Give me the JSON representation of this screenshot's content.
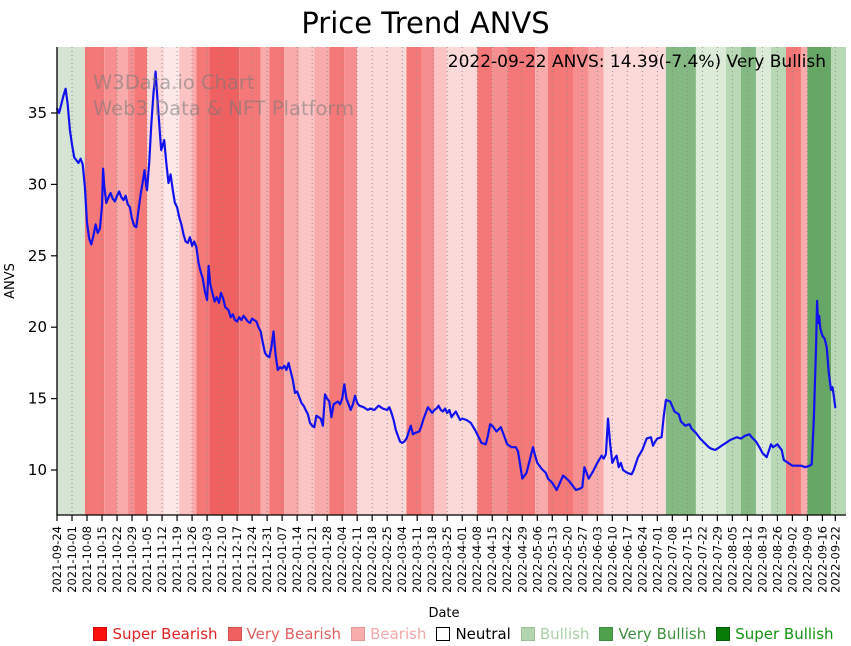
{
  "title": "Price Trend ANVS",
  "annotation": "2022-09-22 ANVS: 14.39(-7.4%) Very Bullish",
  "watermark": {
    "line1": "W3Data.io Chart",
    "line2": "Web3 Data & NFT Platform"
  },
  "axes": {
    "y_label": "ANVS",
    "x_label": "Date",
    "y_ticks": [
      10,
      15,
      20,
      25,
      30,
      35
    ]
  },
  "legend": [
    {
      "label": "Super Bearish",
      "swatch": "#fb0e0e",
      "border": "#cc0b0b",
      "text_color": "#de2323"
    },
    {
      "label": "Very Bearish",
      "swatch": "#f16060",
      "border": "#d45252",
      "text_color": "#e26060"
    },
    {
      "label": "Bearish",
      "swatch": "#f8acac",
      "border": "#dd9898",
      "text_color": "#f2a9a9"
    },
    {
      "label": "Neutral",
      "swatch": "#ffffff",
      "border": "#000000",
      "text_color": "#000000"
    },
    {
      "label": "Bullish",
      "swatch": "#b2d5af",
      "border": "#9dc099",
      "text_color": "#abd0a8"
    },
    {
      "label": "Very Bullish",
      "swatch": "#4fa24c",
      "border": "#418c3f",
      "text_color": "#3f923f"
    },
    {
      "label": "Super Bullish",
      "swatch": "#077d07",
      "border": "#055e05",
      "text_color": "#129312"
    }
  ],
  "colors": {
    "line": "#1212ee",
    "grid": "#8a8a8a",
    "spine": "#000000",
    "tones": {
      "g1": "#d6e5d3",
      "g1x": "#dcebd8",
      "g2": "#b9d8b6",
      "g3": "#84b983",
      "g4": "#66a765",
      "r1": "#ef6161",
      "r2": "#f47878",
      "r3": "#f69090",
      "p": "#f9abab",
      "pl": "#fbc3c3",
      "pv": "#fcd9d9",
      "px": "#fde8e8"
    }
  },
  "chart_data": {
    "type": "line",
    "title": "Price Trend ANVS",
    "xlabel": "Date",
    "ylabel": "ANVS",
    "x_unit": "days since 2021-09-24",
    "x_range": [
      0,
      368
    ],
    "ylim": [
      6.85,
      39.62
    ],
    "grid": "weekly dotted vertical",
    "legend_position": "bottom",
    "x_ticks": {
      "days": [
        0,
        7,
        14,
        21,
        28,
        35,
        42,
        49,
        56,
        63,
        70,
        77,
        84,
        91,
        98,
        105,
        112,
        119,
        126,
        133,
        140,
        147,
        154,
        161,
        168,
        175,
        182,
        189,
        196,
        203,
        210,
        217,
        224,
        231,
        238,
        245,
        252,
        259,
        266,
        273,
        280,
        287,
        294,
        301,
        308,
        315,
        322,
        329,
        336,
        343,
        350,
        357,
        363
      ],
      "labels": [
        "2021-09-24",
        "2021-10-01",
        "2021-10-08",
        "2021-10-15",
        "2021-10-22",
        "2021-10-29",
        "2021-11-05",
        "2021-11-12",
        "2021-11-19",
        "2021-11-26",
        "2021-12-03",
        "2021-12-10",
        "2021-12-17",
        "2021-12-24",
        "2021-12-31",
        "2022-01-07",
        "2022-01-14",
        "2022-01-21",
        "2022-01-28",
        "2022-02-04",
        "2022-02-11",
        "2022-02-18",
        "2022-02-25",
        "2022-03-04",
        "2022-03-11",
        "2022-03-18",
        "2022-03-25",
        "2022-04-01",
        "2022-04-08",
        "2022-04-15",
        "2022-04-22",
        "2022-04-29",
        "2022-05-06",
        "2022-05-13",
        "2022-05-20",
        "2022-05-27",
        "2022-06-03",
        "2022-06-10",
        "2022-06-17",
        "2022-06-24",
        "2022-07-01",
        "2022-07-08",
        "2022-07-15",
        "2022-07-22",
        "2022-07-29",
        "2022-08-05",
        "2022-08-12",
        "2022-08-19",
        "2022-08-26",
        "2022-09-02",
        "2022-09-09",
        "2022-09-16",
        "2022-09-22"
      ]
    },
    "bands": [
      [
        0,
        13,
        "g1"
      ],
      [
        13,
        22,
        "r2"
      ],
      [
        22,
        28,
        "r3"
      ],
      [
        28,
        33,
        "p"
      ],
      [
        33,
        36,
        "r3"
      ],
      [
        36,
        42,
        "r2"
      ],
      [
        42,
        50,
        "pv"
      ],
      [
        50,
        57,
        "px"
      ],
      [
        57,
        63,
        "pl"
      ],
      [
        63,
        65,
        "p"
      ],
      [
        65,
        71,
        "r2"
      ],
      [
        71,
        85,
        "r1"
      ],
      [
        85,
        95,
        "r2"
      ],
      [
        95,
        99,
        "p"
      ],
      [
        99,
        106,
        "r2"
      ],
      [
        106,
        113,
        "p"
      ],
      [
        113,
        120,
        "pl"
      ],
      [
        120,
        127,
        "p"
      ],
      [
        127,
        134,
        "r2"
      ],
      [
        134,
        140,
        "r3"
      ],
      [
        140,
        163,
        "pv"
      ],
      [
        163,
        170,
        "r2"
      ],
      [
        170,
        176,
        "r3"
      ],
      [
        176,
        182,
        "pl"
      ],
      [
        182,
        196,
        "pv"
      ],
      [
        196,
        203,
        "r2"
      ],
      [
        203,
        210,
        "r3"
      ],
      [
        210,
        223,
        "r2"
      ],
      [
        223,
        229,
        "p"
      ],
      [
        229,
        241,
        "r2"
      ],
      [
        241,
        248,
        "r3"
      ],
      [
        248,
        255,
        "p"
      ],
      [
        255,
        284,
        "pv"
      ],
      [
        284,
        298,
        "g3"
      ],
      [
        298,
        312,
        "g1x"
      ],
      [
        312,
        319,
        "g2"
      ],
      [
        319,
        326,
        "g3"
      ],
      [
        326,
        333,
        "g1x"
      ],
      [
        333,
        340,
        "g2"
      ],
      [
        340,
        347,
        "r2"
      ],
      [
        347,
        350,
        "p"
      ],
      [
        350,
        361,
        "g4"
      ],
      [
        361,
        368,
        "g2"
      ]
    ],
    "points": [
      [
        0,
        35.3
      ],
      [
        1,
        35.0
      ],
      [
        2,
        35.6
      ],
      [
        3,
        36.2
      ],
      [
        4,
        36.7
      ],
      [
        5,
        35.6
      ],
      [
        6,
        33.8
      ],
      [
        7,
        32.8
      ],
      [
        8,
        31.9
      ],
      [
        9,
        31.7
      ],
      [
        10,
        31.5
      ],
      [
        11,
        31.8
      ],
      [
        12,
        31.4
      ],
      [
        13,
        29.8
      ],
      [
        14,
        27.3
      ],
      [
        15,
        26.2
      ],
      [
        16,
        25.8
      ],
      [
        17,
        26.4
      ],
      [
        18,
        27.2
      ],
      [
        19,
        26.6
      ],
      [
        20,
        26.9
      ],
      [
        21,
        28.5
      ],
      [
        21.5,
        31.1
      ],
      [
        22,
        29.9
      ],
      [
        23,
        28.7
      ],
      [
        24,
        29.1
      ],
      [
        25,
        29.4
      ],
      [
        26,
        29.0
      ],
      [
        27,
        28.8
      ],
      [
        28,
        29.2
      ],
      [
        29,
        29.5
      ],
      [
        30,
        29.1
      ],
      [
        31,
        28.9
      ],
      [
        32,
        29.2
      ],
      [
        33,
        28.6
      ],
      [
        34,
        28.4
      ],
      [
        35,
        27.6
      ],
      [
        36,
        27.1
      ],
      [
        37,
        27.0
      ],
      [
        38,
        28.2
      ],
      [
        39,
        29.3
      ],
      [
        40,
        30.2
      ],
      [
        40.8,
        31.0
      ],
      [
        41.6,
        29.9
      ],
      [
        42,
        29.6
      ],
      [
        43,
        31.5
      ],
      [
        44,
        34.2
      ],
      [
        45,
        36.4
      ],
      [
        46,
        37.9
      ],
      [
        47,
        35.6
      ],
      [
        48,
        33.6
      ],
      [
        48.6,
        32.4
      ],
      [
        49,
        32.6
      ],
      [
        50,
        33.1
      ],
      [
        51,
        31.5
      ],
      [
        52,
        30.1
      ],
      [
        53,
        30.7
      ],
      [
        54,
        29.6
      ],
      [
        55,
        28.7
      ],
      [
        56,
        28.4
      ],
      [
        57,
        27.7
      ],
      [
        58,
        27.2
      ],
      [
        59,
        26.5
      ],
      [
        60,
        26.0
      ],
      [
        61,
        25.9
      ],
      [
        62,
        26.3
      ],
      [
        63,
        25.7
      ],
      [
        64,
        26.0
      ],
      [
        65,
        25.6
      ],
      [
        66,
        24.5
      ],
      [
        67,
        23.9
      ],
      [
        68,
        23.4
      ],
      [
        69,
        22.5
      ],
      [
        70,
        21.9
      ],
      [
        70.7,
        24.3
      ],
      [
        71.5,
        23.0
      ],
      [
        72.5,
        22.4
      ],
      [
        73.5,
        21.8
      ],
      [
        74.5,
        22.1
      ],
      [
        75.5,
        21.7
      ],
      [
        76.5,
        22.4
      ],
      [
        77.5,
        22.0
      ],
      [
        78.5,
        21.4
      ],
      [
        80,
        21.2
      ],
      [
        81,
        20.7
      ],
      [
        82,
        20.9
      ],
      [
        83,
        20.5
      ],
      [
        84,
        20.4
      ],
      [
        85,
        20.7
      ],
      [
        86,
        20.5
      ],
      [
        87,
        20.8
      ],
      [
        88,
        20.6
      ],
      [
        89,
        20.4
      ],
      [
        90,
        20.3
      ],
      [
        91,
        20.6
      ],
      [
        92,
        20.5
      ],
      [
        93,
        20.4
      ],
      [
        94,
        20.0
      ],
      [
        95,
        19.7
      ],
      [
        96,
        18.9
      ],
      [
        97,
        18.2
      ],
      [
        98,
        18.0
      ],
      [
        99,
        17.9
      ],
      [
        100,
        18.6
      ],
      [
        101,
        19.7
      ],
      [
        102,
        18.0
      ],
      [
        103,
        17.0
      ],
      [
        104,
        17.2
      ],
      [
        105,
        17.1
      ],
      [
        106,
        17.3
      ],
      [
        107,
        17.0
      ],
      [
        108,
        17.5
      ],
      [
        109,
        16.9
      ],
      [
        110,
        16.3
      ],
      [
        111,
        15.4
      ],
      [
        112,
        15.5
      ],
      [
        113,
        15.1
      ],
      [
        114,
        14.7
      ],
      [
        115,
        14.5
      ],
      [
        116,
        14.2
      ],
      [
        117,
        13.9
      ],
      [
        118,
        13.3
      ],
      [
        119,
        13.1
      ],
      [
        120,
        13.0
      ],
      [
        121,
        13.8
      ],
      [
        122,
        13.7
      ],
      [
        123,
        13.6
      ],
      [
        124,
        13.1
      ],
      [
        125,
        15.3
      ],
      [
        126,
        15.0
      ],
      [
        127,
        14.8
      ],
      [
        128,
        13.7
      ],
      [
        129,
        14.6
      ],
      [
        130,
        14.7
      ],
      [
        131,
        14.8
      ],
      [
        132,
        14.6
      ],
      [
        133,
        15.0
      ],
      [
        134,
        16.0
      ],
      [
        135,
        15.0
      ],
      [
        136,
        14.6
      ],
      [
        137,
        14.2
      ],
      [
        138,
        14.6
      ],
      [
        139,
        15.2
      ],
      [
        140,
        14.7
      ],
      [
        141,
        14.5
      ],
      [
        143,
        14.4
      ],
      [
        145,
        14.2
      ],
      [
        146,
        14.3
      ],
      [
        148,
        14.2
      ],
      [
        150,
        14.5
      ],
      [
        152,
        14.3
      ],
      [
        154,
        14.2
      ],
      [
        155,
        14.4
      ],
      [
        156,
        14.0
      ],
      [
        157,
        13.5
      ],
      [
        158,
        12.8
      ],
      [
        159,
        12.4
      ],
      [
        160,
        12.0
      ],
      [
        161,
        11.9
      ],
      [
        162,
        12.0
      ],
      [
        163,
        12.2
      ],
      [
        165,
        13.1
      ],
      [
        166,
        12.5
      ],
      [
        167,
        12.6
      ],
      [
        169,
        12.7
      ],
      [
        170,
        13.1
      ],
      [
        171,
        13.6
      ],
      [
        172,
        14.0
      ],
      [
        173,
        14.4
      ],
      [
        174,
        14.2
      ],
      [
        175,
        14.0
      ],
      [
        176,
        14.2
      ],
      [
        177,
        14.3
      ],
      [
        178,
        14.5
      ],
      [
        179,
        14.2
      ],
      [
        180,
        14.1
      ],
      [
        181,
        14.3
      ],
      [
        182,
        14.0
      ],
      [
        183,
        14.2
      ],
      [
        184,
        13.7
      ],
      [
        185,
        13.9
      ],
      [
        186,
        14.1
      ],
      [
        187,
        13.8
      ],
      [
        188,
        13.5
      ],
      [
        189,
        13.6
      ],
      [
        191,
        13.5
      ],
      [
        193,
        13.3
      ],
      [
        195,
        12.8
      ],
      [
        196,
        12.5
      ],
      [
        197,
        12.2
      ],
      [
        198,
        11.9
      ],
      [
        200,
        11.8
      ],
      [
        201,
        12.4
      ],
      [
        202,
        13.2
      ],
      [
        203,
        13.1
      ],
      [
        204,
        12.9
      ],
      [
        205,
        12.7
      ],
      [
        207,
        13.0
      ],
      [
        208,
        12.6
      ],
      [
        209,
        12.2
      ],
      [
        210,
        11.8
      ],
      [
        212,
        11.6
      ],
      [
        214,
        11.6
      ],
      [
        215,
        11.3
      ],
      [
        216,
        10.4
      ],
      [
        217,
        9.4
      ],
      [
        218,
        9.6
      ],
      [
        219,
        9.8
      ],
      [
        220,
        10.4
      ],
      [
        221,
        11.0
      ],
      [
        222,
        11.6
      ],
      [
        223,
        11.0
      ],
      [
        224,
        10.5
      ],
      [
        226,
        10.1
      ],
      [
        228,
        9.8
      ],
      [
        229,
        9.4
      ],
      [
        231,
        9.1
      ],
      [
        233,
        8.6
      ],
      [
        234,
        8.9
      ],
      [
        236,
        9.6
      ],
      [
        237,
        9.5
      ],
      [
        239,
        9.2
      ],
      [
        240,
        9.0
      ],
      [
        242,
        8.6
      ],
      [
        244,
        8.7
      ],
      [
        245,
        8.8
      ],
      [
        246,
        10.2
      ],
      [
        247,
        9.8
      ],
      [
        248,
        9.4
      ],
      [
        250,
        9.9
      ],
      [
        252,
        10.5
      ],
      [
        254,
        11.0
      ],
      [
        255,
        10.8
      ],
      [
        256,
        11.1
      ],
      [
        257,
        13.6
      ],
      [
        258,
        11.8
      ],
      [
        259,
        10.5
      ],
      [
        260,
        10.8
      ],
      [
        261,
        11.0
      ],
      [
        262,
        10.2
      ],
      [
        263,
        10.5
      ],
      [
        264,
        10.0
      ],
      [
        266,
        9.8
      ],
      [
        268,
        9.7
      ],
      [
        269,
        10.0
      ],
      [
        271,
        10.9
      ],
      [
        273,
        11.4
      ],
      [
        275,
        12.2
      ],
      [
        277,
        12.3
      ],
      [
        278,
        11.7
      ],
      [
        279,
        12.0
      ],
      [
        280,
        12.2
      ],
      [
        282,
        12.3
      ],
      [
        283,
        13.8
      ],
      [
        284,
        14.9
      ],
      [
        286,
        14.8
      ],
      [
        288,
        14.1
      ],
      [
        290,
        13.9
      ],
      [
        291,
        13.4
      ],
      [
        293,
        13.1
      ],
      [
        295,
        13.2
      ],
      [
        296,
        12.9
      ],
      [
        298,
        12.6
      ],
      [
        300,
        12.2
      ],
      [
        302,
        11.9
      ],
      [
        304,
        11.6
      ],
      [
        305,
        11.5
      ],
      [
        307,
        11.4
      ],
      [
        308,
        11.5
      ],
      [
        310,
        11.7
      ],
      [
        312,
        11.9
      ],
      [
        314,
        12.1
      ],
      [
        317,
        12.3
      ],
      [
        319,
        12.2
      ],
      [
        321,
        12.4
      ],
      [
        323,
        12.5
      ],
      [
        324,
        12.3
      ],
      [
        326,
        12.0
      ],
      [
        328,
        11.5
      ],
      [
        329,
        11.2
      ],
      [
        331,
        10.9
      ],
      [
        333,
        11.8
      ],
      [
        334,
        11.6
      ],
      [
        336,
        11.8
      ],
      [
        338,
        11.4
      ],
      [
        339,
        10.7
      ],
      [
        341,
        10.5
      ],
      [
        343,
        10.3
      ],
      [
        345,
        10.3
      ],
      [
        347,
        10.3
      ],
      [
        349,
        10.2
      ],
      [
        351,
        10.3
      ],
      [
        352,
        10.4
      ],
      [
        353,
        13.5
      ],
      [
        354,
        18.5
      ],
      [
        354.5,
        21.85
      ],
      [
        355,
        20.3
      ],
      [
        355.5,
        20.8
      ],
      [
        356,
        19.9
      ],
      [
        357,
        19.4
      ],
      [
        358,
        19.2
      ],
      [
        359,
        18.6
      ],
      [
        360,
        16.8
      ],
      [
        361,
        15.6
      ],
      [
        361.7,
        15.8
      ],
      [
        362.3,
        15.2
      ],
      [
        363,
        14.39
      ]
    ]
  }
}
